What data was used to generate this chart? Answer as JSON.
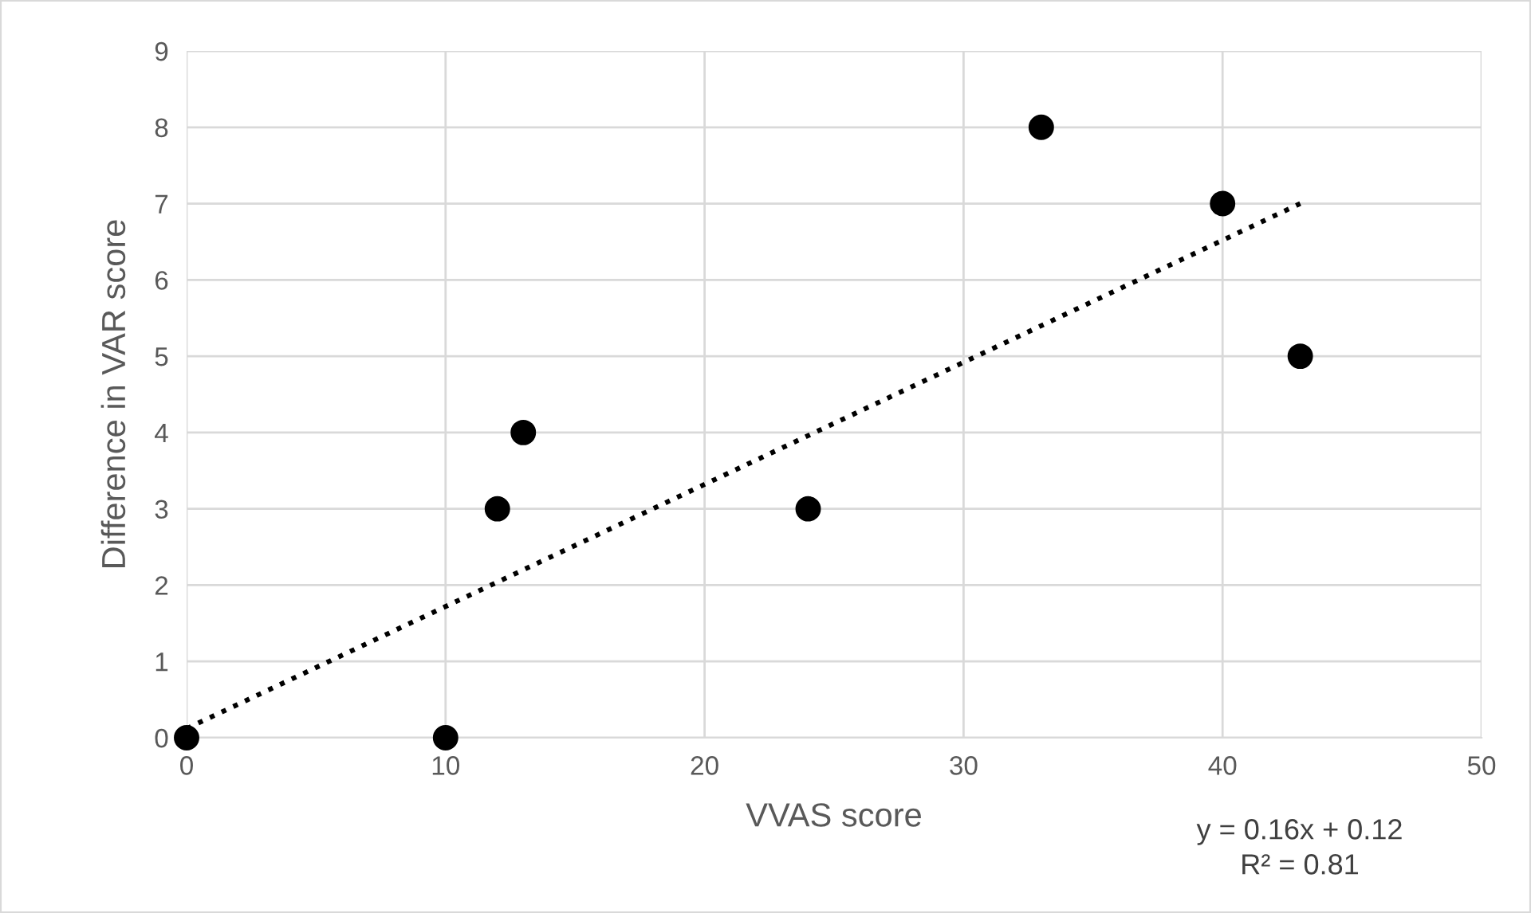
{
  "chart_data": {
    "type": "scatter",
    "xlabel": "VVAS score",
    "ylabel": "Difference in VAR score",
    "series": [
      {
        "color": "#000000",
        "marker": "circle",
        "x": [
          0,
          10,
          12,
          13,
          24,
          33,
          40,
          43
        ],
        "values": [
          0,
          0,
          3,
          4,
          3,
          8,
          7,
          5
        ]
      },
      {
        "type": "line",
        "color": "#000000",
        "line_style": "dotted",
        "marker": "none",
        "x": [
          0,
          43
        ],
        "values": [
          0.12,
          7.0
        ]
      }
    ],
    "xlim": [
      0,
      50
    ],
    "xticks": [
      0,
      10,
      20,
      30,
      40,
      50
    ],
    "ylim": [
      0,
      9
    ],
    "yticks": [
      0,
      1,
      2,
      3,
      4,
      5,
      6,
      7,
      8,
      9
    ],
    "grid": true,
    "legend": false,
    "annotations": [
      "y = 0.16x + 0.12",
      "R² = 0.81"
    ]
  }
}
